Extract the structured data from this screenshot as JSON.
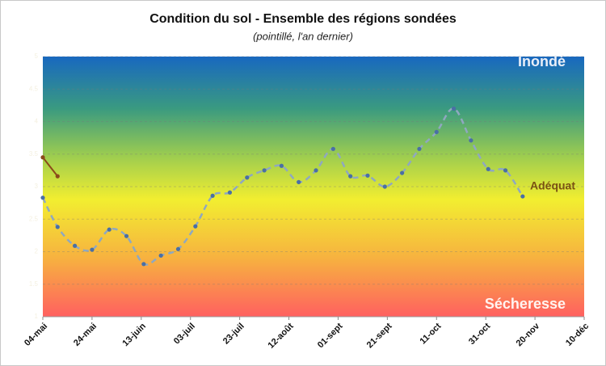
{
  "chart_data": {
    "type": "line",
    "title": "Condition du sol - Ensemble des régions sondées",
    "subtitle": "(pointillé, l'an dernier)",
    "annotations": [
      "Inondé",
      "Adéquat",
      "Sécheresse"
    ],
    "xlim": [
      0,
      220
    ],
    "xticks": [
      {
        "value": 0,
        "label": "04-mai"
      },
      {
        "value": 20,
        "label": "24-mai"
      },
      {
        "value": 40,
        "label": "13-juin"
      },
      {
        "value": 60,
        "label": "03-juil"
      },
      {
        "value": 80,
        "label": "23-juil"
      },
      {
        "value": 100,
        "label": "12-août"
      },
      {
        "value": 120,
        "label": "01-sept"
      },
      {
        "value": 140,
        "label": "21-sept"
      },
      {
        "value": 160,
        "label": "11-oct"
      },
      {
        "value": 180,
        "label": "31-oct"
      },
      {
        "value": 200,
        "label": "20-nov"
      },
      {
        "value": 220,
        "label": "10-déc"
      }
    ],
    "ylim": [
      1,
      5
    ],
    "yticks": [
      1,
      1.5,
      2,
      2.5,
      3,
      3.5,
      4,
      4.5,
      5
    ],
    "grid": true,
    "series": [
      {
        "color": "#8fa8c0",
        "marker_color": "#4a6fa5",
        "dashed": true,
        "x": [
          0,
          6,
          13,
          20,
          27,
          34,
          41,
          48,
          55,
          62,
          69,
          76,
          83,
          90,
          97,
          104,
          111,
          118,
          125,
          132,
          139,
          146,
          153,
          160,
          167,
          174,
          181,
          188,
          195
        ],
        "values": [
          2.83,
          2.38,
          2.09,
          2.03,
          2.34,
          2.24,
          1.81,
          1.94,
          2.04,
          2.39,
          2.86,
          2.91,
          3.14,
          3.25,
          3.32,
          3.07,
          3.25,
          3.58,
          3.16,
          3.17,
          3.0,
          3.21,
          3.58,
          3.84,
          4.2,
          3.71,
          3.27,
          3.25,
          2.85
        ]
      },
      {
        "color": "#8b4a1a",
        "marker_color": "#8b4a1a",
        "dashed": false,
        "x": [
          0,
          6
        ],
        "values": [
          3.45,
          3.16
        ]
      }
    ]
  }
}
